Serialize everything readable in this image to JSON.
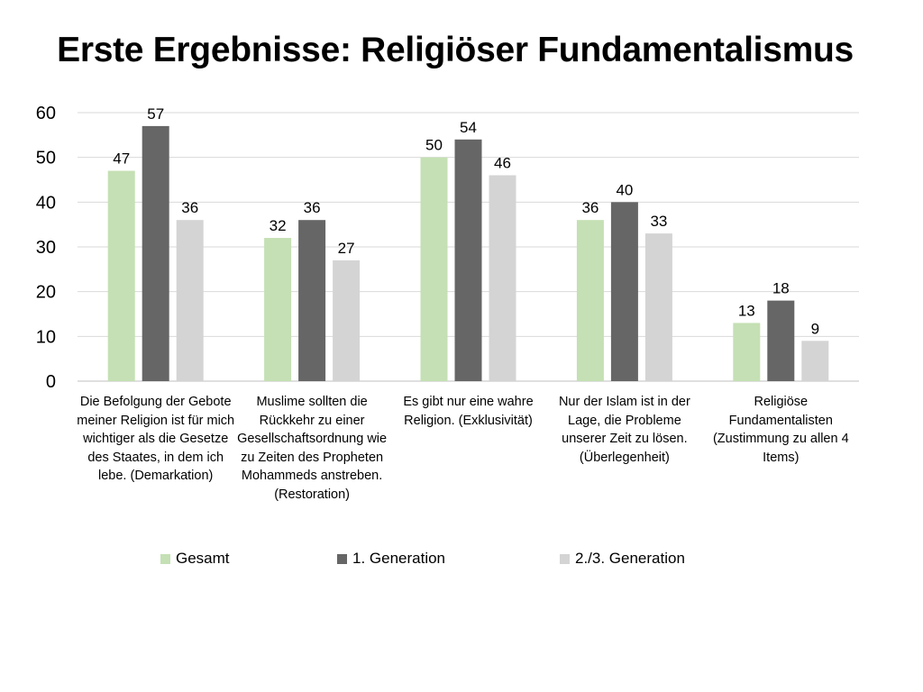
{
  "title": "Erste Ergebnisse: Religiöser Fundamentalismus",
  "chart_data": {
    "type": "bar",
    "title": "Erste Ergebnisse: Religiöser Fundamentalismus",
    "xlabel": "",
    "ylabel": "",
    "ylim": [
      0,
      60
    ],
    "yticks": [
      0,
      10,
      20,
      30,
      40,
      50,
      60
    ],
    "grid": true,
    "legend_position": "bottom",
    "categories": [
      "Die Befolgung der Gebote meiner Religion ist für mich wichtiger als die Gesetze des Staates, in dem ich lebe. (Demarkation)",
      "Muslime sollten die Rückkehr zu einer Gesellschaftsordnung wie zu Zeiten des Propheten Mohammeds anstreben. (Restoration)",
      "Es gibt nur eine wahre Religion. (Exklusivität)",
      "Nur der Islam ist in der Lage, die Probleme unserer Zeit zu lösen. (Überlegenheit)",
      "Religiöse Fundamentalisten (Zustimmung zu allen 4 Items)"
    ],
    "series": [
      {
        "name": "Gesamt",
        "color": "#c5e0b4",
        "values": [
          47,
          32,
          50,
          36,
          13
        ]
      },
      {
        "name": "1. Generation",
        "color": "#666666",
        "values": [
          57,
          36,
          54,
          40,
          18
        ]
      },
      {
        "name": "2./3. Generation",
        "color": "#d4d4d4",
        "values": [
          36,
          27,
          46,
          33,
          9
        ]
      }
    ]
  }
}
